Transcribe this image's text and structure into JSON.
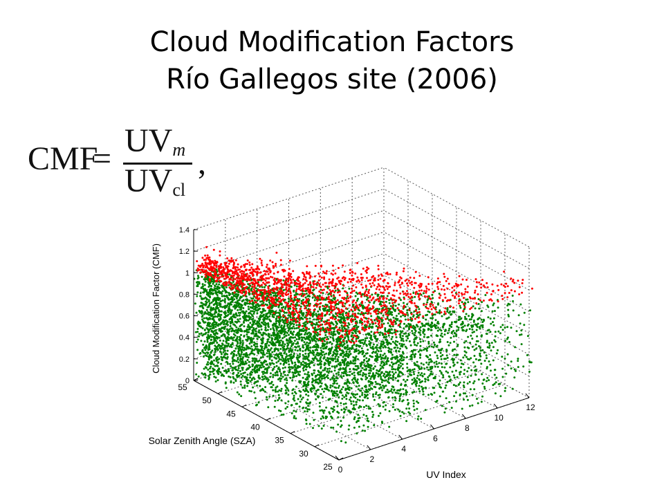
{
  "title": {
    "line1": "Cloud Modification Factors",
    "line2": "Río Gallegos site (2006)"
  },
  "formula": {
    "lhs": "CMF",
    "equals": "=",
    "numerator": "UV",
    "numerator_sub": "m",
    "denominator": "UV",
    "denominator_sub": "cl",
    "trailing": ","
  },
  "chart_data": {
    "type": "scatter",
    "projection": "3d",
    "xlabel": "UV Index",
    "ylabel": "Solar Zenith Angle (SZA)",
    "zlabel": "Cloud Modification Factor (CMF)",
    "xlim": [
      0,
      12
    ],
    "ylim": [
      25,
      55
    ],
    "zlim": [
      0,
      1.4
    ],
    "xticks": [
      0,
      2,
      4,
      6,
      8,
      10,
      12
    ],
    "yticks": [
      25,
      30,
      35,
      40,
      45,
      50,
      55
    ],
    "zticks": [
      0,
      0.2,
      0.4,
      0.6,
      0.8,
      1,
      1.2,
      1.4
    ],
    "xtick_labels": [
      "0",
      "2",
      "4",
      "6",
      "8",
      "10",
      "12"
    ],
    "ytick_labels": [
      "25",
      "30",
      "35",
      "40",
      "45",
      "50",
      "55"
    ],
    "ztick_labels": [
      "0",
      "0.2",
      "0.4",
      "0.6",
      "0.8",
      "1",
      "1.2",
      "1.4"
    ],
    "grid": true,
    "series": [
      {
        "color": "#ff0000",
        "cmf_range": [
          1.0,
          1.3
        ],
        "description_values": "CMF > 1"
      },
      {
        "color": "#008000",
        "cmf_range": [
          0.0,
          1.0
        ],
        "description_values": "CMF <= 1"
      }
    ]
  }
}
